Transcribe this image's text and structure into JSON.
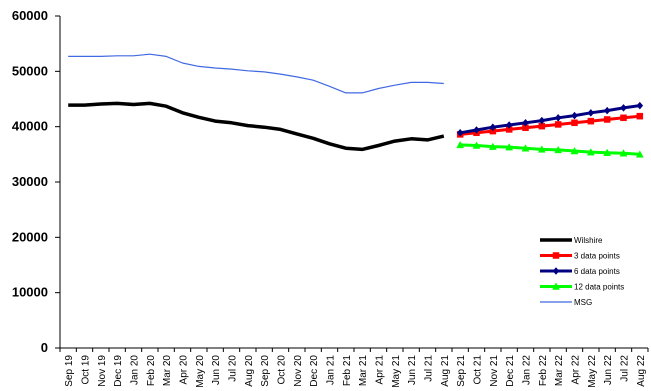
{
  "chart_data": {
    "type": "line",
    "title": "",
    "xlabel": "",
    "ylabel": "",
    "ylim": [
      0,
      60000
    ],
    "yticks": [
      0,
      10000,
      20000,
      30000,
      40000,
      50000,
      60000
    ],
    "grid": false,
    "legend_placement": "bottom-right",
    "categories": [
      "Sep 19",
      "Oct 19",
      "Nov 19",
      "Dec 19",
      "Jan 20",
      "Feb 20",
      "Mar 20",
      "Apr 20",
      "May 20",
      "Jun 20",
      "Jul 20",
      "Aug 20",
      "Sep 20",
      "Oct 20",
      "Nov 20",
      "Dec 20",
      "Jan 21",
      "Feb 21",
      "Mar 21",
      "Apr 21",
      "May 21",
      "Jun 21",
      "Jul 21",
      "Aug 21",
      "Sep 21",
      "Oct 21",
      "Nov 21",
      "Dec 21",
      "Jan 22",
      "Feb 22",
      "Mar 22",
      "Apr 22",
      "May 22",
      "Jun 22",
      "Jul 22",
      "Aug 22"
    ],
    "series": [
      {
        "name": "Wilshire",
        "color": "#000000",
        "marker": "none",
        "values": [
          43900,
          43900,
          44100,
          44200,
          44000,
          44200,
          43700,
          42500,
          41700,
          41000,
          40700,
          40200,
          39900,
          39500,
          38700,
          37900,
          36900,
          36100,
          35900,
          36600,
          37400,
          37800,
          37600,
          38300,
          null,
          null,
          null,
          null,
          null,
          null,
          null,
          null,
          null,
          null,
          null,
          null
        ]
      },
      {
        "name": "3 data points",
        "color": "#ff0000",
        "marker": "square",
        "values": [
          null,
          null,
          null,
          null,
          null,
          null,
          null,
          null,
          null,
          null,
          null,
          null,
          null,
          null,
          null,
          null,
          null,
          null,
          null,
          null,
          null,
          null,
          null,
          null,
          38600,
          38900,
          39200,
          39500,
          39800,
          40100,
          40400,
          40700,
          41000,
          41300,
          41600,
          41900
        ]
      },
      {
        "name": "6 data points",
        "color": "#000080",
        "marker": "diamond",
        "values": [
          null,
          null,
          null,
          null,
          null,
          null,
          null,
          null,
          null,
          null,
          null,
          null,
          null,
          null,
          null,
          null,
          null,
          null,
          null,
          null,
          null,
          null,
          null,
          null,
          38900,
          39400,
          39900,
          40300,
          40700,
          41100,
          41600,
          42000,
          42500,
          42900,
          43400,
          43800
        ]
      },
      {
        "name": "12 data points",
        "color": "#00ff00",
        "marker": "triangle",
        "values": [
          null,
          null,
          null,
          null,
          null,
          null,
          null,
          null,
          null,
          null,
          null,
          null,
          null,
          null,
          null,
          null,
          null,
          null,
          null,
          null,
          null,
          null,
          null,
          null,
          36700,
          36600,
          36400,
          36300,
          36100,
          35900,
          35800,
          35600,
          35400,
          35300,
          35200,
          35000
        ]
      },
      {
        "name": "MSG",
        "color": "#4169e1",
        "marker": "none",
        "values": [
          52700,
          52700,
          52700,
          52800,
          52800,
          53100,
          52700,
          51500,
          50900,
          50600,
          50400,
          50100,
          49900,
          49500,
          49000,
          48400,
          47300,
          46100,
          46100,
          46900,
          47500,
          48000,
          48000,
          47800,
          null,
          null,
          null,
          null,
          null,
          null,
          null,
          null,
          null,
          null,
          null,
          null
        ]
      }
    ]
  }
}
